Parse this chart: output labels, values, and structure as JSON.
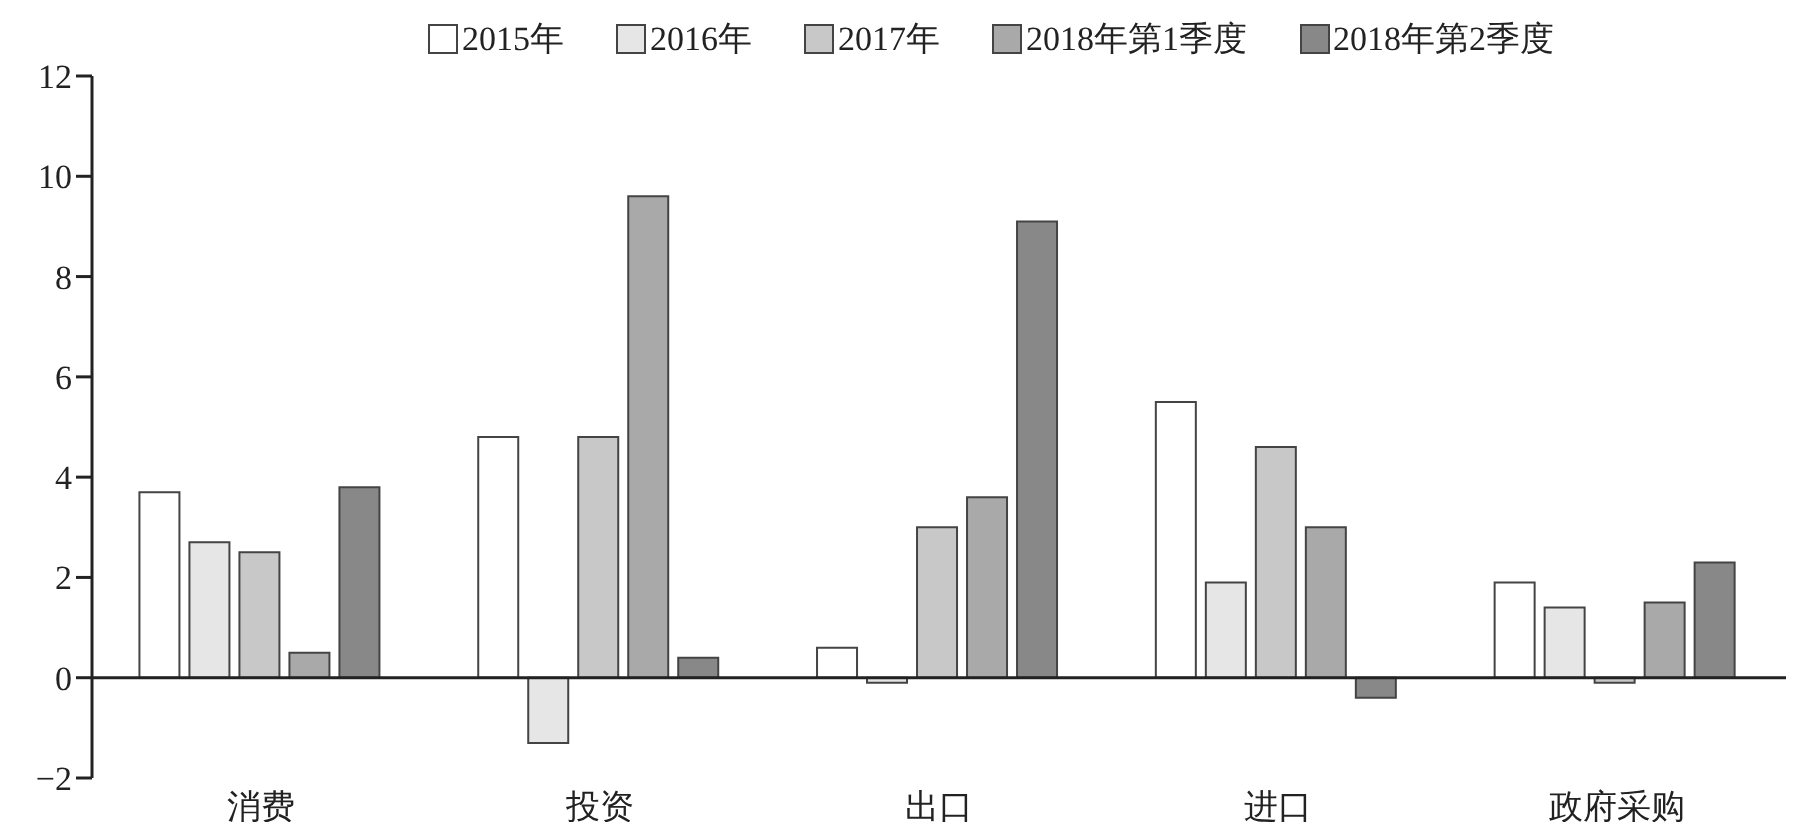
{
  "chart_data": {
    "type": "bar",
    "categories": [
      "消费",
      "投资",
      "出口",
      "进口",
      "政府采购"
    ],
    "series": [
      {
        "name": "2015年",
        "color": "#ffffff",
        "values": [
          3.7,
          4.8,
          0.6,
          5.5,
          1.9
        ]
      },
      {
        "name": "2016年",
        "color": "#e6e6e6",
        "values": [
          2.7,
          -1.3,
          -0.1,
          1.9,
          1.4
        ]
      },
      {
        "name": "2017年",
        "color": "#c8c8c8",
        "values": [
          2.5,
          4.8,
          3.0,
          4.6,
          -0.1
        ]
      },
      {
        "name": "2018年第1季度",
        "color": "#a9a9a9",
        "values": [
          0.5,
          9.6,
          3.6,
          3.0,
          1.5
        ]
      },
      {
        "name": "2018年第2季度",
        "color": "#888888",
        "values": [
          3.8,
          0.4,
          9.1,
          -0.4,
          2.3
        ]
      }
    ],
    "ylim": [
      -2,
      12
    ],
    "yticks": [
      {
        "value": -2,
        "label": "−2"
      },
      0,
      2,
      4,
      6,
      8,
      10,
      12
    ],
    "legend": "top"
  }
}
